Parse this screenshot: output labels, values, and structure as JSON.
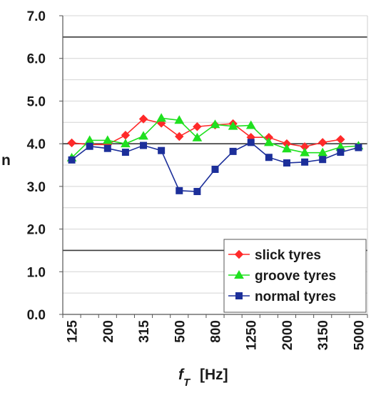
{
  "chart_data": {
    "type": "line",
    "x_tick_labels": [
      "125",
      "200",
      "315",
      "500",
      "800",
      "1250",
      "2000",
      "3150",
      "5000"
    ],
    "x": [
      "125",
      "160",
      "200",
      "250",
      "315",
      "400",
      "500",
      "630",
      "800",
      "1000",
      "1250",
      "1600",
      "2000",
      "2500",
      "3150",
      "4000",
      "5000"
    ],
    "y_tick_labels": [
      "0.0",
      "1.0",
      "2.0",
      "3.0",
      "4.0",
      "5.0",
      "6.0",
      "7.0"
    ],
    "ylim": [
      0,
      7
    ],
    "ylabel": "n",
    "xlabel_main": "f",
    "xlabel_sub": "T",
    "xlabel_unit": "[Hz]",
    "reference_lines": [
      1.5,
      4.0,
      6.5
    ],
    "grid": true,
    "legend_position": "bottom-right",
    "series": [
      {
        "name": "slick tyres",
        "color": "#ff2a2a",
        "marker": "diamond",
        "values": [
          4.02,
          3.98,
          3.98,
          4.2,
          4.58,
          4.48,
          4.17,
          4.4,
          4.44,
          4.47,
          4.15,
          4.15,
          4.0,
          3.93,
          4.03,
          4.1,
          null
        ]
      },
      {
        "name": "groove tyres",
        "color": "#1fe01f",
        "marker": "triangle",
        "values": [
          3.67,
          4.08,
          4.08,
          4.0,
          4.18,
          4.6,
          4.55,
          4.14,
          4.45,
          4.41,
          4.43,
          4.03,
          3.88,
          3.79,
          3.79,
          3.92,
          3.95
        ]
      },
      {
        "name": "normal tyres",
        "color": "#1c2f9a",
        "marker": "square",
        "values": [
          3.62,
          3.94,
          3.89,
          3.8,
          3.96,
          3.84,
          2.9,
          2.88,
          3.4,
          3.82,
          4.03,
          3.68,
          3.55,
          3.57,
          3.63,
          3.8,
          3.91
        ]
      }
    ]
  }
}
